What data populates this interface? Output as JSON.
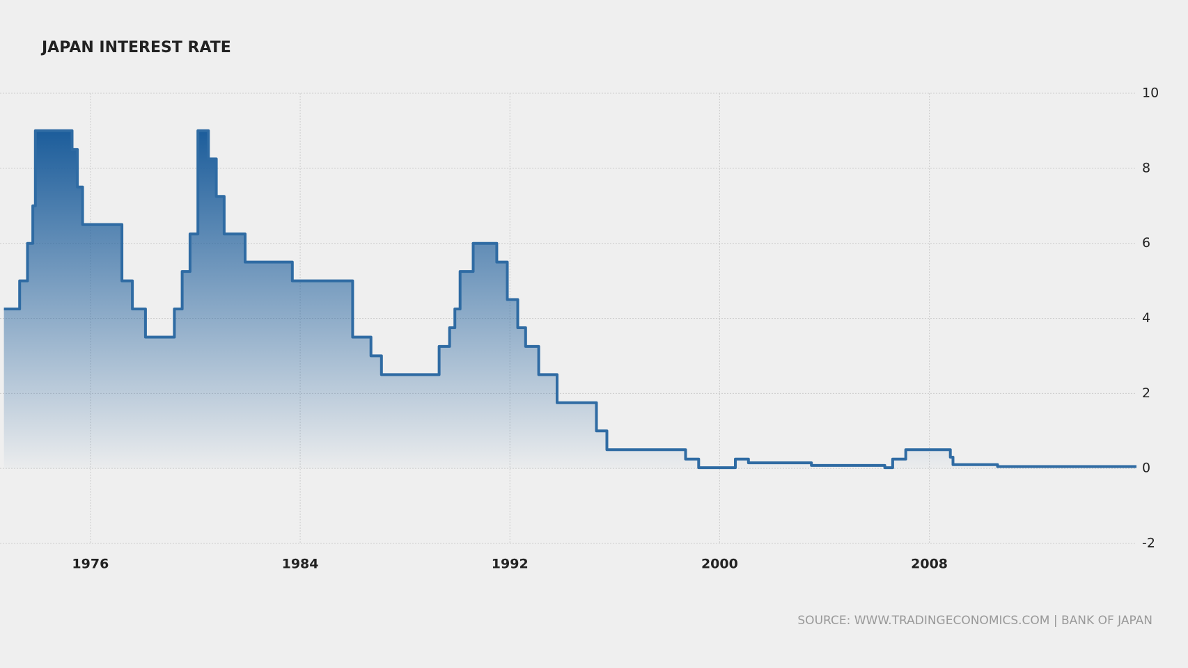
{
  "chart_data": {
    "type": "area",
    "step": "post",
    "title": "JAPAN INTEREST RATE",
    "source": "SOURCE: WWW.TRADINGECONOMICS.COM | BANK OF JAPAN",
    "x": [
      1972.7,
      1973.3,
      1973.6,
      1973.8,
      1973.9,
      1975.3,
      1975.5,
      1975.7,
      1977.2,
      1977.6,
      1978.1,
      1979.2,
      1979.5,
      1979.8,
      1980.1,
      1980.5,
      1980.8,
      1981.1,
      1981.9,
      1983.7,
      1986.0,
      1986.7,
      1987.1,
      1989.3,
      1989.7,
      1989.9,
      1990.1,
      1990.6,
      1991.5,
      1991.9,
      1992.3,
      1992.6,
      1993.1,
      1993.8,
      1995.3,
      1995.7,
      1998.7,
      1999.2,
      2000.6,
      2001.1,
      2003.5,
      2006.3,
      2006.6,
      2007.1,
      2008.8,
      2008.9,
      2010.6,
      2015.9
    ],
    "series": [
      {
        "name": "Japan Interest Rate",
        "color": "#2f6ba3",
        "values": [
          4.25,
          5,
          6,
          7,
          9,
          8.5,
          7.5,
          6.5,
          5,
          4.25,
          3.5,
          4.25,
          5.25,
          6.25,
          9,
          8.25,
          7.25,
          6.25,
          5.5,
          5,
          3.5,
          3,
          2.5,
          3.25,
          3.75,
          4.25,
          5.25,
          6,
          5.5,
          4.5,
          3.75,
          3.25,
          2.5,
          1.75,
          1,
          0.5,
          0.25,
          0.02,
          0.25,
          0.15,
          0.08,
          0.02,
          0.25,
          0.5,
          0.3,
          0.1,
          0.05,
          0.05
        ]
      }
    ],
    "xlim": [
      1972.55,
      2015.9
    ],
    "xticks": [
      1976,
      1984,
      1992,
      2000,
      2008
    ],
    "ylim": [
      -2,
      10
    ],
    "yticks": [
      -2,
      0,
      2,
      4,
      6,
      8,
      10
    ],
    "grid": true
  }
}
